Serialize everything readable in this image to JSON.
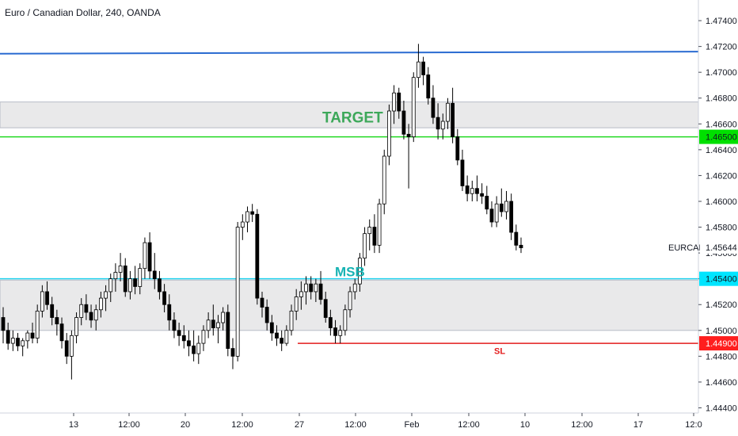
{
  "chart_data": {
    "type": "candlestick",
    "title": "Euro / Canadian Dollar, 240, OANDA",
    "symbol_label": "EURCAD",
    "y_axis": {
      "ticks": [
        "1.47400",
        "1.47200",
        "1.47000",
        "1.46800",
        "1.46600",
        "1.46400",
        "1.46200",
        "1.46000",
        "1.45800",
        "1.45600",
        "1.45400",
        "1.45200",
        "1.45000",
        "1.44800",
        "1.44600",
        "1.44400"
      ],
      "range": [
        1.4436,
        1.4756
      ]
    },
    "x_axis": {
      "ticks": [
        "13",
        "12:00",
        "20",
        "12:00",
        "27",
        "12:00",
        "Feb",
        "12:00",
        "10",
        "12:00",
        "17",
        "12:0"
      ]
    },
    "price_labels": [
      {
        "id": "last",
        "text": "1.45644",
        "color": "#ffffff",
        "value": 1.45644
      },
      {
        "id": "msb",
        "text": "1.45400",
        "color": "#00e5ff",
        "value": 1.454
      },
      {
        "id": "target",
        "text": "1.46500",
        "color": "#00e000",
        "value": 1.465
      },
      {
        "id": "sl",
        "text": "1.44900",
        "color": "#ff1e1e",
        "value": 1.449
      }
    ],
    "horizontal_lines": [
      {
        "name": "TARGET",
        "value": 1.465,
        "color": "#21d921"
      },
      {
        "name": "MSB",
        "value": 1.454,
        "color": "#22d3ee"
      },
      {
        "name": "SL",
        "value": 1.449,
        "color": "#e31b1b"
      }
    ],
    "trend_line": {
      "from": 1.4715,
      "to": 1.4716,
      "color": "#2a6bd1"
    },
    "zones": [
      {
        "name": "supply",
        "top": 1.4677,
        "bottom": 1.4657
      },
      {
        "name": "demand",
        "top": 1.4539,
        "bottom": 1.45
      }
    ],
    "annotations": [
      {
        "text": "TARGET",
        "color": "#3da85a",
        "value": 1.4661
      },
      {
        "text": "MSB",
        "color": "#17b3b3",
        "value": 1.4542
      },
      {
        "text": "SL",
        "color": "#e31b1b",
        "value": 1.4489
      }
    ],
    "ohlc": [
      [
        1.451,
        1.4518,
        1.449,
        1.45
      ],
      [
        1.45,
        1.4506,
        1.4485,
        1.449
      ],
      [
        1.449,
        1.45,
        1.4484,
        1.4494
      ],
      [
        1.4494,
        1.4498,
        1.4484,
        1.4488
      ],
      [
        1.4488,
        1.4494,
        1.448,
        1.4492
      ],
      [
        1.4492,
        1.45,
        1.4486,
        1.4498
      ],
      [
        1.4498,
        1.4506,
        1.449,
        1.4494
      ],
      [
        1.4494,
        1.452,
        1.449,
        1.4515
      ],
      [
        1.4515,
        1.4535,
        1.451,
        1.453
      ],
      [
        1.453,
        1.4538,
        1.4516,
        1.452
      ],
      [
        1.452,
        1.4526,
        1.4504,
        1.451
      ],
      [
        1.451,
        1.4516,
        1.4496,
        1.4505
      ],
      [
        1.4505,
        1.451,
        1.4486,
        1.4492
      ],
      [
        1.4492,
        1.4498,
        1.4474,
        1.448
      ],
      [
        1.448,
        1.45,
        1.4462,
        1.4496
      ],
      [
        1.4496,
        1.4514,
        1.449,
        1.451
      ],
      [
        1.451,
        1.4525,
        1.4504,
        1.452
      ],
      [
        1.452,
        1.4528,
        1.4508,
        1.4514
      ],
      [
        1.4514,
        1.452,
        1.4502,
        1.4508
      ],
      [
        1.4508,
        1.452,
        1.45,
        1.4516
      ],
      [
        1.4516,
        1.453,
        1.451,
        1.4525
      ],
      [
        1.4525,
        1.4535,
        1.4515,
        1.453
      ],
      [
        1.453,
        1.4544,
        1.4522,
        1.454
      ],
      [
        1.454,
        1.4552,
        1.453,
        1.4545
      ],
      [
        1.4545,
        1.456,
        1.4538,
        1.455
      ],
      [
        1.455,
        1.4556,
        1.4526,
        1.453
      ],
      [
        1.453,
        1.4546,
        1.4524,
        1.454
      ],
      [
        1.454,
        1.455,
        1.4528,
        1.4534
      ],
      [
        1.4534,
        1.4552,
        1.4528,
        1.4548
      ],
      [
        1.4548,
        1.4572,
        1.454,
        1.4568
      ],
      [
        1.4568,
        1.4576,
        1.454,
        1.4546
      ],
      [
        1.4546,
        1.456,
        1.4532,
        1.454
      ],
      [
        1.454,
        1.4546,
        1.4524,
        1.453
      ],
      [
        1.453,
        1.4536,
        1.4514,
        1.452
      ],
      [
        1.452,
        1.4528,
        1.45,
        1.4508
      ],
      [
        1.4508,
        1.4514,
        1.4494,
        1.45
      ],
      [
        1.45,
        1.4506,
        1.4488,
        1.4496
      ],
      [
        1.4496,
        1.4504,
        1.4486,
        1.4492
      ],
      [
        1.4492,
        1.45,
        1.448,
        1.4488
      ],
      [
        1.4488,
        1.45,
        1.4476,
        1.4482
      ],
      [
        1.4482,
        1.4496,
        1.4474,
        1.449
      ],
      [
        1.449,
        1.4504,
        1.4484,
        1.45
      ],
      [
        1.45,
        1.4514,
        1.4494,
        1.4508
      ],
      [
        1.4508,
        1.452,
        1.4496,
        1.4502
      ],
      [
        1.4502,
        1.4512,
        1.449,
        1.4506
      ],
      [
        1.4506,
        1.4518,
        1.45,
        1.4514
      ],
      [
        1.4514,
        1.452,
        1.448,
        1.4486
      ],
      [
        1.4486,
        1.4494,
        1.447,
        1.448
      ],
      [
        1.448,
        1.4584,
        1.4476,
        1.458
      ],
      [
        1.458,
        1.459,
        1.457,
        1.4584
      ],
      [
        1.4584,
        1.4596,
        1.4576,
        1.4592
      ],
      [
        1.4592,
        1.4598,
        1.4584,
        1.459
      ],
      [
        1.459,
        1.4594,
        1.452,
        1.4525
      ],
      [
        1.4525,
        1.453,
        1.451,
        1.4518
      ],
      [
        1.4518,
        1.4524,
        1.45,
        1.4506
      ],
      [
        1.4506,
        1.4512,
        1.4492,
        1.4498
      ],
      [
        1.4498,
        1.4504,
        1.4488,
        1.4494
      ],
      [
        1.4494,
        1.45,
        1.4484,
        1.449
      ],
      [
        1.449,
        1.4504,
        1.4488,
        1.45
      ],
      [
        1.45,
        1.452,
        1.4496,
        1.4515
      ],
      [
        1.4515,
        1.4532,
        1.4508,
        1.4526
      ],
      [
        1.4526,
        1.4538,
        1.4516,
        1.453
      ],
      [
        1.453,
        1.4542,
        1.452,
        1.4536
      ],
      [
        1.4536,
        1.4542,
        1.4524,
        1.453
      ],
      [
        1.453,
        1.454,
        1.4522,
        1.4536
      ],
      [
        1.4536,
        1.4546,
        1.452,
        1.4524
      ],
      [
        1.4524,
        1.453,
        1.4506,
        1.451
      ],
      [
        1.451,
        1.4516,
        1.4496,
        1.4502
      ],
      [
        1.4502,
        1.4508,
        1.449,
        1.4496
      ],
      [
        1.4496,
        1.4504,
        1.449,
        1.45
      ],
      [
        1.45,
        1.452,
        1.4496,
        1.4516
      ],
      [
        1.4516,
        1.4534,
        1.451,
        1.453
      ],
      [
        1.453,
        1.454,
        1.4524,
        1.4536
      ],
      [
        1.4536,
        1.456,
        1.453,
        1.4556
      ],
      [
        1.4556,
        1.458,
        1.455,
        1.4575
      ],
      [
        1.4575,
        1.4586,
        1.4562,
        1.458
      ],
      [
        1.458,
        1.459,
        1.456,
        1.4566
      ],
      [
        1.4566,
        1.4602,
        1.456,
        1.4598
      ],
      [
        1.4598,
        1.464,
        1.459,
        1.4635
      ],
      [
        1.4635,
        1.4675,
        1.4628,
        1.467
      ],
      [
        1.467,
        1.469,
        1.466,
        1.4684
      ],
      [
        1.4684,
        1.4688,
        1.4664,
        1.467
      ],
      [
        1.467,
        1.4678,
        1.4648,
        1.4652
      ],
      [
        1.4652,
        1.466,
        1.461,
        1.465
      ],
      [
        1.465,
        1.47,
        1.4646,
        1.4696
      ],
      [
        1.4696,
        1.4722,
        1.4688,
        1.4708
      ],
      [
        1.4708,
        1.4712,
        1.469,
        1.4698
      ],
      [
        1.4698,
        1.4704,
        1.4675,
        1.468
      ],
      [
        1.468,
        1.469,
        1.466,
        1.4665
      ],
      [
        1.4665,
        1.4676,
        1.4648,
        1.4656
      ],
      [
        1.4656,
        1.4668,
        1.4648,
        1.4662
      ],
      [
        1.4662,
        1.468,
        1.4656,
        1.4676
      ],
      [
        1.4676,
        1.4688,
        1.4645,
        1.465
      ],
      [
        1.465,
        1.4656,
        1.4628,
        1.4632
      ],
      [
        1.4632,
        1.464,
        1.4608,
        1.4612
      ],
      [
        1.4612,
        1.462,
        1.46,
        1.4606
      ],
      [
        1.4606,
        1.4616,
        1.46,
        1.461
      ],
      [
        1.461,
        1.462,
        1.46,
        1.4606
      ],
      [
        1.4606,
        1.4614,
        1.4598,
        1.4604
      ],
      [
        1.4604,
        1.4612,
        1.459,
        1.4594
      ],
      [
        1.4594,
        1.46,
        1.458,
        1.4584
      ],
      [
        1.4584,
        1.4604,
        1.458,
        1.4598
      ],
      [
        1.4598,
        1.461,
        1.4588,
        1.4592
      ],
      [
        1.4592,
        1.4608,
        1.4586,
        1.46
      ],
      [
        1.46,
        1.4606,
        1.457,
        1.4576
      ],
      [
        1.4576,
        1.4582,
        1.4562,
        1.4566
      ],
      [
        1.4566,
        1.4572,
        1.456,
        1.4564
      ]
    ]
  }
}
